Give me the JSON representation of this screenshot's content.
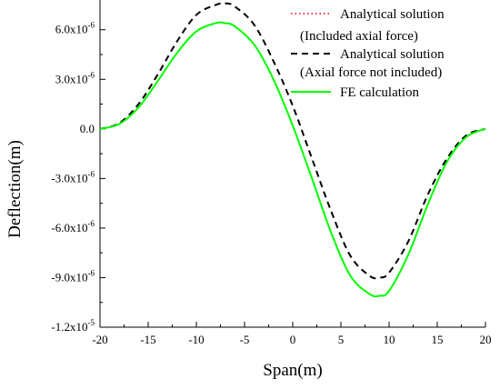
{
  "chart_data": {
    "type": "line",
    "xlabel": "Span(m)",
    "ylabel": "Deflection(m)",
    "xlim": [
      -20,
      20
    ],
    "ylim": [
      -1.2e-05,
      7.8e-06
    ],
    "x_ticks": [
      -20,
      -15,
      -10,
      -5,
      0,
      5,
      10,
      15,
      20
    ],
    "x_tick_labels": [
      "-20",
      "-15",
      "-10",
      "-5",
      "0",
      "5",
      "10",
      "15",
      "20"
    ],
    "y_ticks": [
      6e-06,
      3e-06,
      0,
      -3e-06,
      -6e-06,
      -9e-06,
      -1.2e-05
    ],
    "y_tick_labels": [
      {
        "base": "6.0x10",
        "exp": "-6"
      },
      {
        "base": "3.0x10",
        "exp": "-6"
      },
      {
        "base": "0.0",
        "exp": ""
      },
      {
        "base": "-3.0x10",
        "exp": "-6"
      },
      {
        "base": "-6.0x10",
        "exp": "-6"
      },
      {
        "base": "-9.0x10",
        "exp": "-6"
      },
      {
        "base": "-1.2x10",
        "exp": "-5"
      }
    ],
    "grid": false,
    "legend_position": "top-right",
    "legend": [
      {
        "line1": "Analytical solution",
        "line2": "(Included axial force)",
        "style": "dotted",
        "color": "#ff0000"
      },
      {
        "line1": "Analytical solution",
        "line2": "(Axial force not included)",
        "style": "dashed",
        "color": "#000000"
      },
      {
        "line1": "FE calculation",
        "line2": "",
        "style": "solid",
        "color": "#00ff00"
      }
    ],
    "x": [
      -20,
      -18,
      -16,
      -14,
      -12,
      -10,
      -8,
      -7,
      -6,
      -4,
      -2,
      0,
      2,
      4,
      6,
      8,
      9,
      10,
      12,
      14,
      16,
      18,
      20
    ],
    "series": [
      {
        "name": "Analytical solution (Included axial force)",
        "color": "#ff0000",
        "style": "dotted",
        "values": [
          0,
          3e-07,
          1.3e-06,
          2.9e-06,
          4.6e-06,
          5.9e-06,
          6.4e-06,
          6.4e-06,
          6.2e-06,
          5.1e-06,
          3e-06,
          2e-07,
          -3e-06,
          -6.3e-06,
          -8.9e-06,
          -1e-05,
          -1.01e-05,
          -9.8e-06,
          -7.6e-06,
          -4.6e-06,
          -2e-06,
          -5e-07,
          0
        ]
      },
      {
        "name": "Analytical solution (Axial force not included)",
        "color": "#000000",
        "style": "dashed",
        "values": [
          0,
          3.5e-07,
          1.5e-06,
          3.3e-06,
          5.3e-06,
          6.9e-06,
          7.5e-06,
          7.6e-06,
          7.4e-06,
          6.3e-06,
          4.1e-06,
          1.4e-06,
          -1.8e-06,
          -5e-06,
          -7.7e-06,
          -8.9e-06,
          -9e-06,
          -8.7e-06,
          -6.8e-06,
          -4e-06,
          -1.8e-06,
          -4e-07,
          0
        ]
      },
      {
        "name": "FE calculation",
        "color": "#00ff00",
        "style": "solid",
        "values": [
          0,
          3e-07,
          1.3e-06,
          2.9e-06,
          4.6e-06,
          5.9e-06,
          6.4e-06,
          6.4e-06,
          6.2e-06,
          5.1e-06,
          3e-06,
          2e-07,
          -3e-06,
          -6.3e-06,
          -8.9e-06,
          -1e-05,
          -1.01e-05,
          -9.8e-06,
          -7.6e-06,
          -4.6e-06,
          -2e-06,
          -5e-07,
          0
        ]
      }
    ]
  }
}
